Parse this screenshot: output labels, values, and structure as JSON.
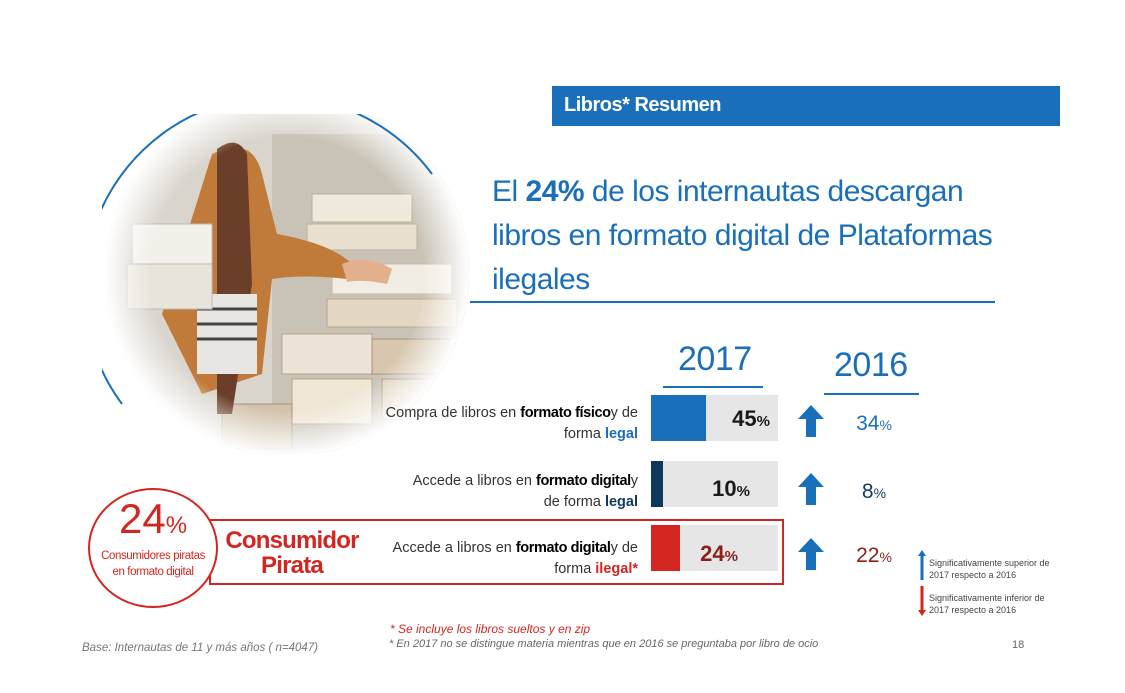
{
  "header": {
    "title": "Libros* Resumen"
  },
  "headline": {
    "part1": "El ",
    "highlight": "24%",
    "part2": " de los internautas descargan libros en formato digital de Plataformas ilegales"
  },
  "columns": {
    "year_current": "2017",
    "year_previous": "2016"
  },
  "chart_data": {
    "type": "bar",
    "categories": [
      "Compra de libros en formato físico y de forma legal",
      "Accede a libros en formato digital y de forma legal",
      "Accede a libros en formato digital y de forma ilegal*"
    ],
    "series": [
      {
        "name": "2017",
        "values": [
          45,
          10,
          24
        ],
        "colors": [
          "#1a6fba",
          "#0f3a5c",
          "#d32620"
        ]
      },
      {
        "name": "2016",
        "values": [
          34,
          8,
          22
        ]
      }
    ],
    "trend": [
      "up",
      "up",
      "up"
    ],
    "ylim": [
      0,
      100
    ]
  },
  "rows": [
    {
      "l1a": "Compra de libros ",
      "l1b": "en ",
      "l1c": "formato ",
      "l1d": "físico",
      "l1e": "y de",
      "l2a": "forma ",
      "l2b": "legal",
      "val": "45",
      "unit": "%",
      "prev": "34",
      "prev_unit": "%"
    },
    {
      "l1a": "Accede a libros  en ",
      "l1b": "formato ",
      "l1c": "digital",
      "l1d": "y",
      "l2a": "de forma ",
      "l2b": "legal",
      "val": "10",
      "unit": "%",
      "prev": "8",
      "prev_unit": "%"
    },
    {
      "l1a": "Accede a libros en ",
      "l1b": "formato ",
      "l1c": "digital",
      "l1d": "y de",
      "l2a": "forma ",
      "l2b": "ilegal*",
      "val": "24",
      "unit": "%",
      "prev": "22",
      "prev_unit": "%"
    }
  ],
  "pirata": {
    "percent": "24",
    "unit": "%",
    "subtitle_l1": "Consumidores piratas",
    "subtitle_l2": "en formato digital",
    "title_l1": "Consumidor",
    "title_l2": "Pirata"
  },
  "legend": {
    "superior_l1": "Significativamente superior de",
    "superior_l2": "2017  respecto a 2016",
    "inferior_l1": "Significativamente inferior de",
    "inferior_l2": "2017  respecto a 2016",
    "color_up": "#1a6fba",
    "color_down": "#d32620"
  },
  "footnotes": {
    "red": "* Se incluye los libros sueltos y en zip",
    "gray": "* En 2017 no se distingue materia mientras que en 2016 se preguntaba por libro de ocio"
  },
  "base": "Base: Internautas de 11 y más años ( n=4047)",
  "page_number": "18"
}
